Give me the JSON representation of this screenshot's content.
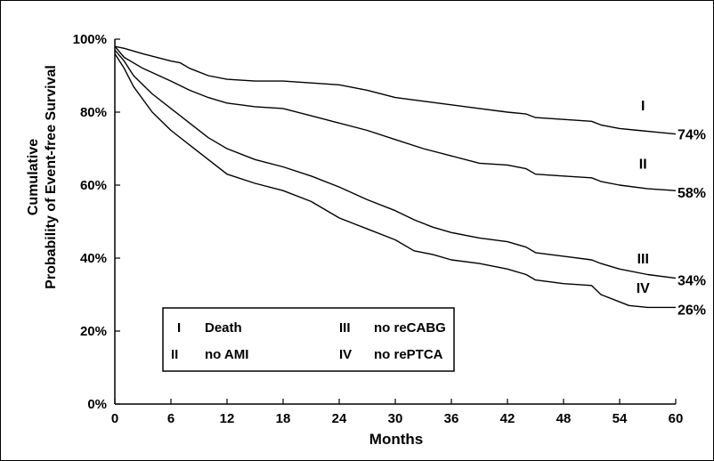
{
  "chart_data": {
    "type": "line",
    "xlabel": "Months",
    "ylabel_line1": "Cumulative",
    "ylabel_line2": "Probability of Event-free Survival",
    "xlim": [
      0,
      60
    ],
    "ylim": [
      0,
      100
    ],
    "x_ticks": [
      "0",
      "6",
      "12",
      "18",
      "24",
      "30",
      "36",
      "42",
      "48",
      "54",
      "60"
    ],
    "y_ticks": [
      "0%",
      "20%",
      "40%",
      "60%",
      "80%",
      "100%"
    ],
    "grid": false,
    "legend": {
      "placement": "bottom-left",
      "entries": [
        {
          "key": "I",
          "label": "Death"
        },
        {
          "key": "II",
          "label": "no AMI"
        },
        {
          "key": "III",
          "label": "no reCABG"
        },
        {
          "key": "IV",
          "label": "no rePTCA"
        }
      ]
    },
    "series": [
      {
        "key": "I",
        "end_label": "74%",
        "end_value": 74,
        "label_x": 56.5,
        "label_y": 80.5,
        "points": [
          [
            0,
            98
          ],
          [
            1,
            97.5
          ],
          [
            3,
            96
          ],
          [
            6,
            94
          ],
          [
            7,
            93.5
          ],
          [
            8,
            92
          ],
          [
            10,
            90
          ],
          [
            12,
            89
          ],
          [
            15,
            88.5
          ],
          [
            18,
            88.5
          ],
          [
            21,
            88
          ],
          [
            24,
            87.5
          ],
          [
            27,
            86
          ],
          [
            30,
            84
          ],
          [
            33,
            83
          ],
          [
            36,
            82
          ],
          [
            39,
            81
          ],
          [
            42,
            80
          ],
          [
            44,
            79.5
          ],
          [
            45,
            78.5
          ],
          [
            48,
            78
          ],
          [
            51,
            77.5
          ],
          [
            52,
            76.5
          ],
          [
            54,
            75.5
          ],
          [
            56,
            75
          ],
          [
            58,
            74.5
          ],
          [
            60,
            74
          ]
        ]
      },
      {
        "key": "II",
        "end_label": "58%",
        "end_value": 58,
        "label_x": 56.5,
        "label_y": 64.5,
        "points": [
          [
            0,
            98
          ],
          [
            1,
            95
          ],
          [
            3,
            92
          ],
          [
            6,
            88.5
          ],
          [
            8,
            86
          ],
          [
            10,
            84
          ],
          [
            12,
            82.5
          ],
          [
            15,
            81.5
          ],
          [
            18,
            81
          ],
          [
            21,
            79
          ],
          [
            24,
            77
          ],
          [
            27,
            75
          ],
          [
            30,
            72.5
          ],
          [
            33,
            70
          ],
          [
            36,
            68
          ],
          [
            39,
            66
          ],
          [
            42,
            65.5
          ],
          [
            44,
            64.5
          ],
          [
            45,
            63
          ],
          [
            48,
            62.5
          ],
          [
            51,
            62
          ],
          [
            52,
            61
          ],
          [
            54,
            60
          ],
          [
            57,
            59
          ],
          [
            60,
            58.5
          ]
        ]
      },
      {
        "key": "III",
        "end_label": "34%",
        "end_value": 34,
        "label_x": 56.5,
        "label_y": 38.5,
        "points": [
          [
            0,
            97
          ],
          [
            1,
            94
          ],
          [
            2,
            90
          ],
          [
            4,
            85
          ],
          [
            6,
            81
          ],
          [
            8,
            77
          ],
          [
            10,
            73
          ],
          [
            12,
            70
          ],
          [
            15,
            67
          ],
          [
            18,
            65
          ],
          [
            21,
            62.5
          ],
          [
            24,
            59.5
          ],
          [
            27,
            56
          ],
          [
            30,
            53
          ],
          [
            32,
            50.5
          ],
          [
            34,
            48.5
          ],
          [
            36,
            47
          ],
          [
            39,
            45.5
          ],
          [
            42,
            44.5
          ],
          [
            44,
            43
          ],
          [
            45,
            41.5
          ],
          [
            48,
            40.5
          ],
          [
            51,
            39.5
          ],
          [
            52,
            38.5
          ],
          [
            54,
            37
          ],
          [
            57,
            35.5
          ],
          [
            60,
            34.5
          ]
        ]
      },
      {
        "key": "IV",
        "end_label": "26%",
        "end_value": 26,
        "label_x": 56.5,
        "label_y": 30.5,
        "points": [
          [
            0,
            96
          ],
          [
            1,
            92
          ],
          [
            2,
            87
          ],
          [
            4,
            80
          ],
          [
            6,
            75
          ],
          [
            8,
            71
          ],
          [
            10,
            67
          ],
          [
            12,
            63
          ],
          [
            15,
            60.5
          ],
          [
            18,
            58.5
          ],
          [
            21,
            55.5
          ],
          [
            24,
            51
          ],
          [
            27,
            48
          ],
          [
            30,
            45
          ],
          [
            32,
            42
          ],
          [
            34,
            41
          ],
          [
            36,
            39.5
          ],
          [
            39,
            38.5
          ],
          [
            42,
            37
          ],
          [
            44,
            35.5
          ],
          [
            45,
            34
          ],
          [
            48,
            33
          ],
          [
            51,
            32.5
          ],
          [
            52,
            30
          ],
          [
            54,
            28
          ],
          [
            55,
            27
          ],
          [
            57,
            26.5
          ],
          [
            60,
            26.5
          ]
        ]
      }
    ]
  }
}
